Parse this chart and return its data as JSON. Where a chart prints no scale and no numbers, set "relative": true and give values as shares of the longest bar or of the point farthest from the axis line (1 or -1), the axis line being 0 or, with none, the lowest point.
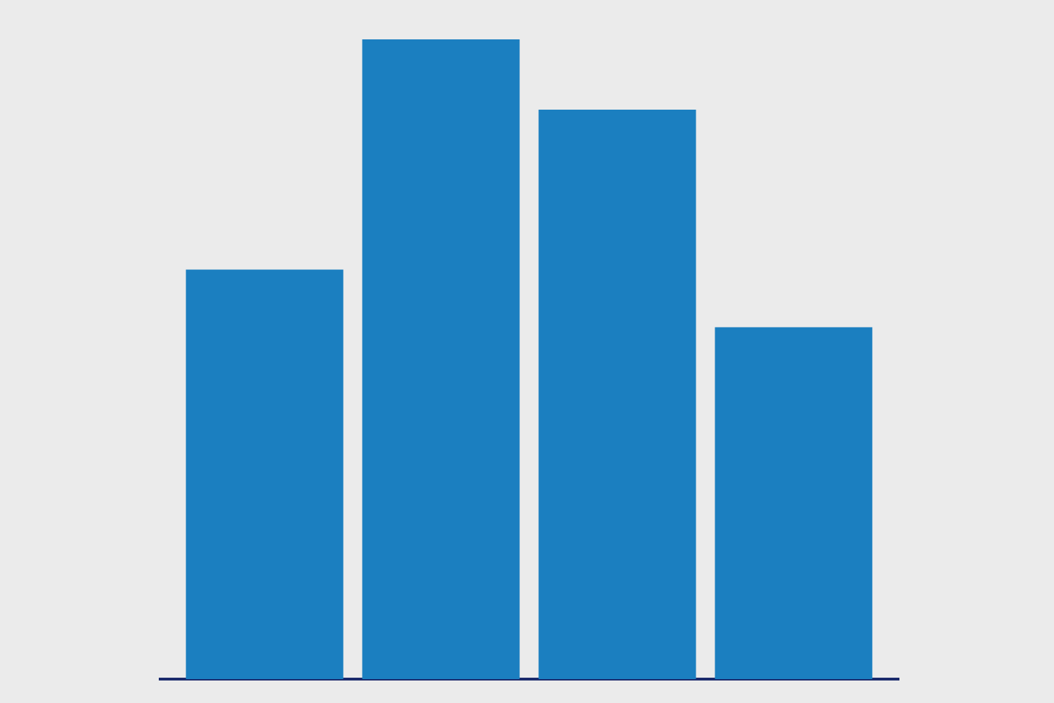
{
  "chart_data": {
    "type": "bar",
    "relative": true,
    "categories": [
      null,
      null,
      null,
      null
    ],
    "values": [
      0.64,
      1,
      0.89,
      0.55
    ],
    "color": "#1b7fc0"
  }
}
